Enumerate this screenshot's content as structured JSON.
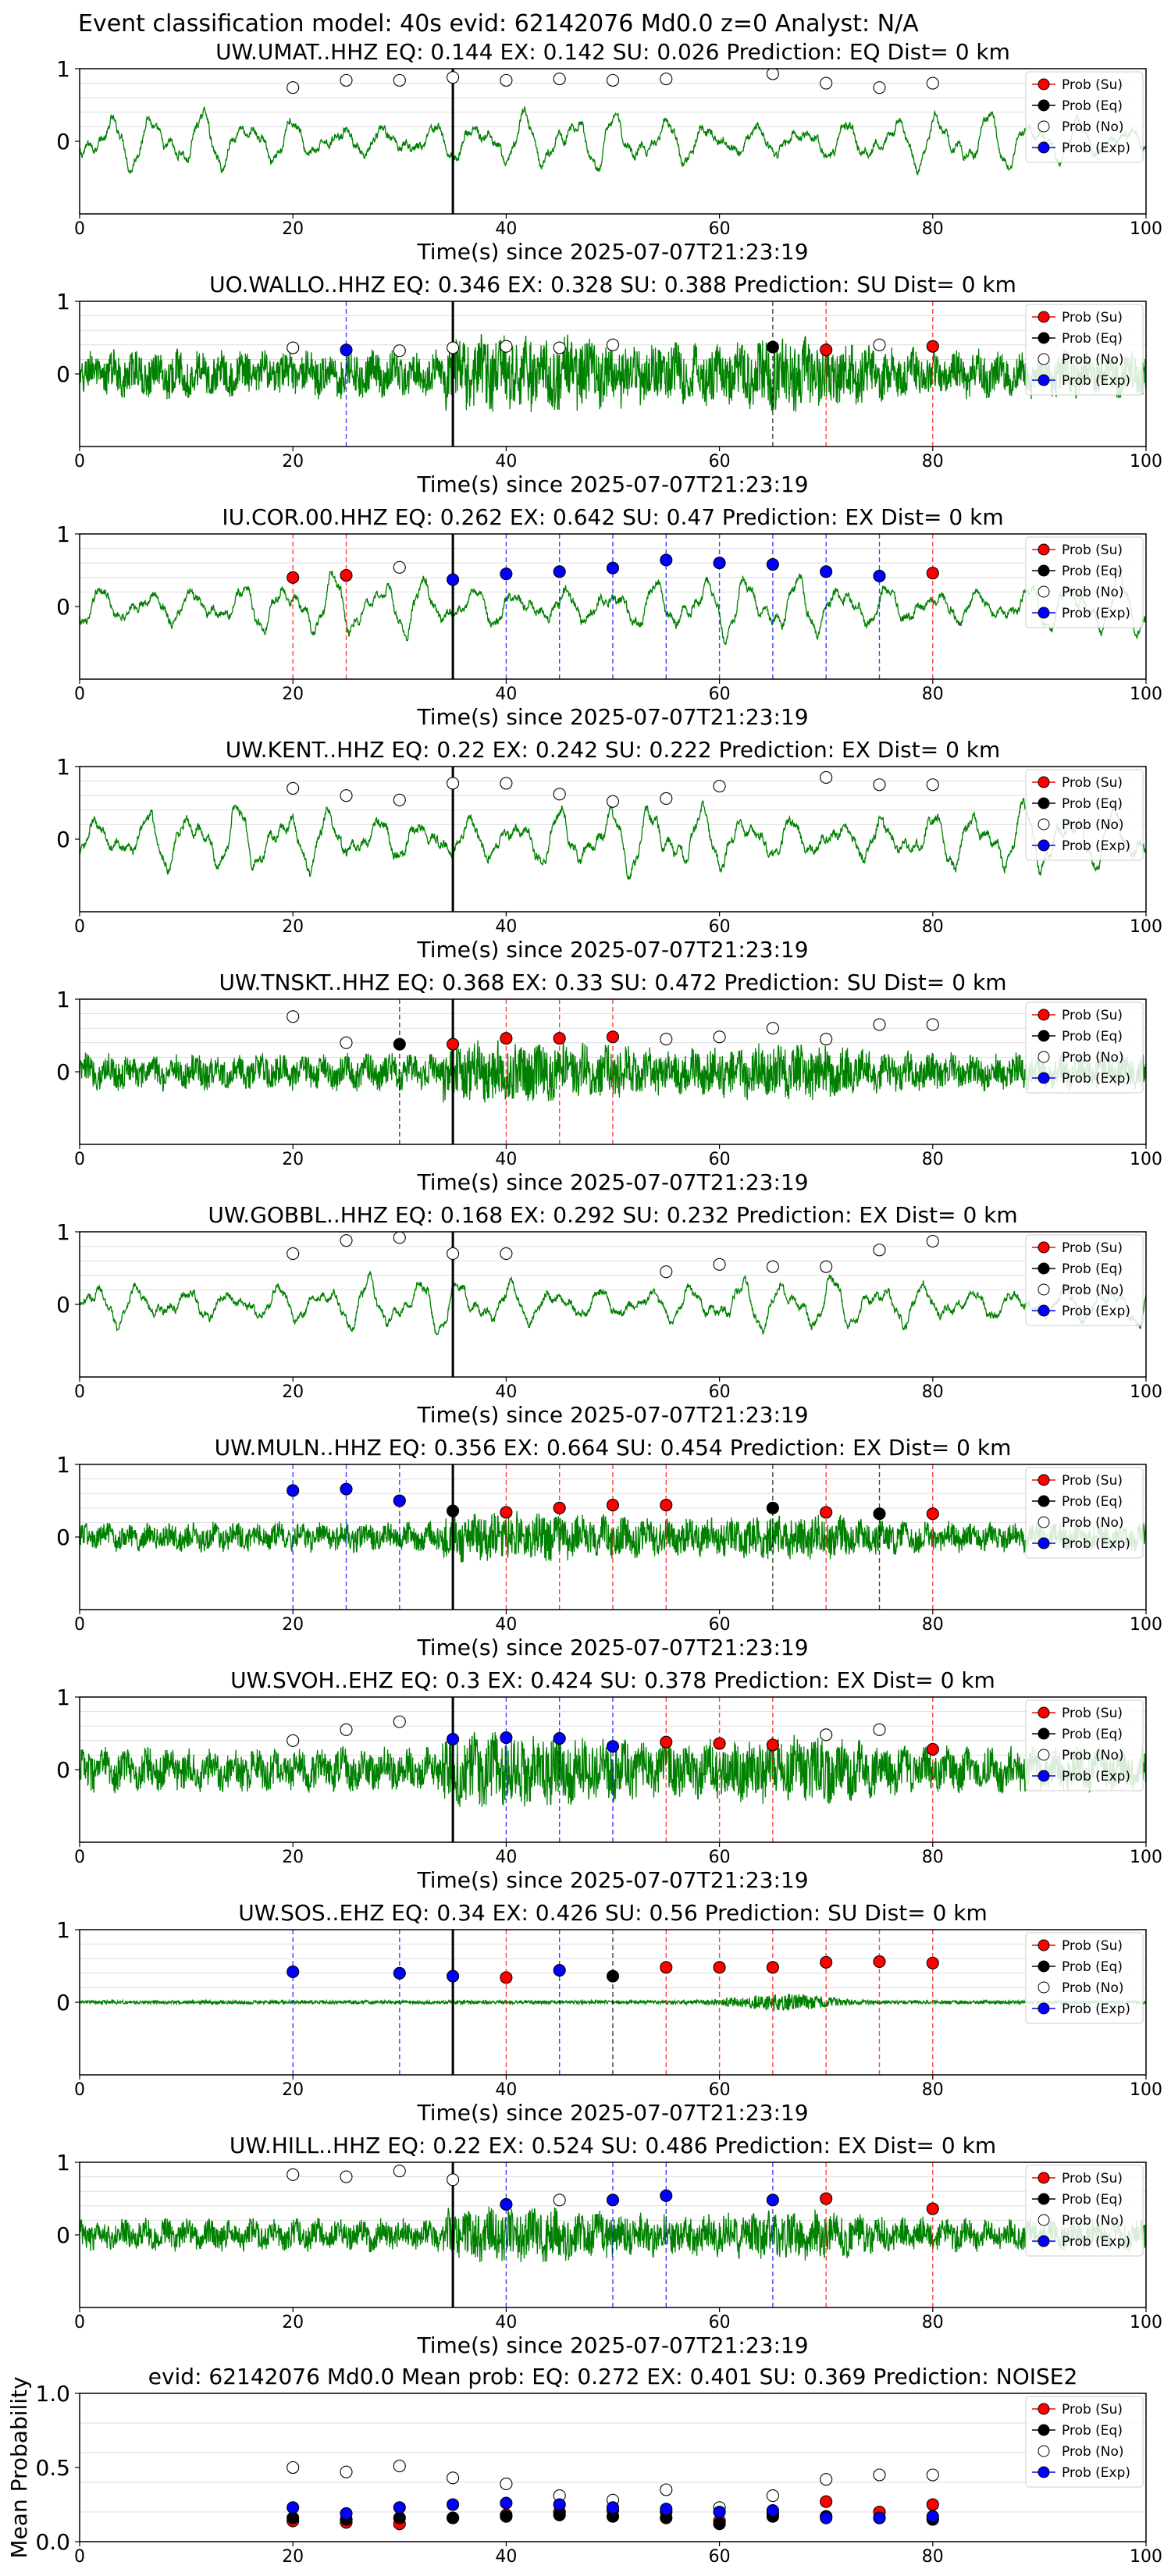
{
  "figure_title": "Event classification model: 40s evid: 62142076 Md0.0 z=0 Analyst: N/A",
  "legend": [
    {
      "label": "Prob (Su)",
      "color": "#ff0000"
    },
    {
      "label": "Prob (Eq)",
      "color": "#000000"
    },
    {
      "label": "Prob (No)",
      "color": "#ffffff"
    },
    {
      "label": "Prob (Exp)",
      "color": "#0000ff"
    }
  ],
  "colors": {
    "trace": "#008000",
    "su": "#ff0000",
    "eq": "#000000",
    "no": "#ffffff",
    "exp": "#0000ff",
    "grid": "#dddddd"
  },
  "chart_data": [
    {
      "type": "line",
      "station": "UW.UMAT..HHZ",
      "title": "UW.UMAT..HHZ   EQ: 0.144  EX: 0.142  SU: 0.026   Prediction: EQ    Dist= 0 km",
      "xlabel": "Time(s) since 2025-07-07T21:23:19",
      "xlim": [
        0,
        100
      ],
      "ylim": [
        -1,
        1
      ],
      "xticks": [
        "0",
        "20",
        "40",
        "60",
        "80",
        "100"
      ],
      "yticks": [
        "1",
        "0"
      ],
      "pick_time": 35,
      "trace_style": "smooth",
      "trace_amp": 0.42,
      "points": [
        {
          "x": 20,
          "y": 0.74,
          "class": "no"
        },
        {
          "x": 25,
          "y": 0.84,
          "class": "no"
        },
        {
          "x": 30,
          "y": 0.84,
          "class": "no"
        },
        {
          "x": 35,
          "y": 0.88,
          "class": "no"
        },
        {
          "x": 40,
          "y": 0.84,
          "class": "no"
        },
        {
          "x": 45,
          "y": 0.86,
          "class": "no"
        },
        {
          "x": 50,
          "y": 0.84,
          "class": "no"
        },
        {
          "x": 55,
          "y": 0.86,
          "class": "no"
        },
        {
          "x": 65,
          "y": 0.93,
          "class": "no"
        },
        {
          "x": 70,
          "y": 0.8,
          "class": "no"
        },
        {
          "x": 75,
          "y": 0.74,
          "class": "no"
        },
        {
          "x": 80,
          "y": 0.8,
          "class": "no"
        }
      ]
    },
    {
      "type": "line",
      "station": "UO.WALLO..HHZ",
      "title": "UO.WALLO..HHZ   EQ: 0.346  EX: 0.328  SU: 0.388   Prediction: SU    Dist= 0 km",
      "xlabel": "Time(s) since 2025-07-07T21:23:19",
      "xlim": [
        0,
        100
      ],
      "ylim": [
        -1,
        1
      ],
      "xticks": [
        "0",
        "20",
        "40",
        "60",
        "80",
        "100"
      ],
      "yticks": [
        "1",
        "0"
      ],
      "pick_time": 35,
      "trace_style": "noisy",
      "trace_amp": 0.32,
      "points": [
        {
          "x": 20,
          "y": 0.36,
          "class": "no"
        },
        {
          "x": 25,
          "y": 0.33,
          "class": "exp"
        },
        {
          "x": 30,
          "y": 0.32,
          "class": "no"
        },
        {
          "x": 35,
          "y": 0.36,
          "class": "no"
        },
        {
          "x": 40,
          "y": 0.38,
          "class": "no"
        },
        {
          "x": 45,
          "y": 0.36,
          "class": "no"
        },
        {
          "x": 50,
          "y": 0.4,
          "class": "no"
        },
        {
          "x": 65,
          "y": 0.37,
          "class": "eq"
        },
        {
          "x": 70,
          "y": 0.33,
          "class": "su"
        },
        {
          "x": 75,
          "y": 0.4,
          "class": "no"
        },
        {
          "x": 80,
          "y": 0.38,
          "class": "su"
        }
      ]
    },
    {
      "type": "line",
      "station": "IU.COR.00.HHZ",
      "title": "IU.COR.00.HHZ   EQ: 0.262  EX: 0.642  SU: 0.47   Prediction: EX    Dist= 0 km",
      "xlabel": "Time(s) since 2025-07-07T21:23:19",
      "xlim": [
        0,
        100
      ],
      "ylim": [
        -1,
        1
      ],
      "xticks": [
        "0",
        "20",
        "40",
        "60",
        "80",
        "100"
      ],
      "yticks": [
        "1",
        "0"
      ],
      "pick_time": 35,
      "trace_style": "smooth",
      "trace_amp": 0.45,
      "points": [
        {
          "x": 20,
          "y": 0.4,
          "class": "su"
        },
        {
          "x": 25,
          "y": 0.43,
          "class": "su"
        },
        {
          "x": 30,
          "y": 0.54,
          "class": "no"
        },
        {
          "x": 35,
          "y": 0.37,
          "class": "exp"
        },
        {
          "x": 40,
          "y": 0.45,
          "class": "exp"
        },
        {
          "x": 45,
          "y": 0.48,
          "class": "exp"
        },
        {
          "x": 50,
          "y": 0.53,
          "class": "exp"
        },
        {
          "x": 55,
          "y": 0.64,
          "class": "exp"
        },
        {
          "x": 60,
          "y": 0.6,
          "class": "exp"
        },
        {
          "x": 65,
          "y": 0.58,
          "class": "exp"
        },
        {
          "x": 70,
          "y": 0.48,
          "class": "exp"
        },
        {
          "x": 75,
          "y": 0.42,
          "class": "exp"
        },
        {
          "x": 80,
          "y": 0.46,
          "class": "su"
        }
      ]
    },
    {
      "type": "line",
      "station": "UW.KENT..HHZ",
      "title": "UW.KENT..HHZ   EQ: 0.22  EX: 0.242  SU: 0.222   Prediction: EX    Dist= 0 km",
      "xlabel": "Time(s) since 2025-07-07T21:23:19",
      "xlim": [
        0,
        100
      ],
      "ylim": [
        -1,
        1
      ],
      "xticks": [
        "0",
        "20",
        "40",
        "60",
        "80",
        "100"
      ],
      "yticks": [
        "1",
        "0"
      ],
      "pick_time": 35,
      "trace_style": "smooth",
      "trace_amp": 0.5,
      "points": [
        {
          "x": 20,
          "y": 0.7,
          "class": "no"
        },
        {
          "x": 25,
          "y": 0.6,
          "class": "no"
        },
        {
          "x": 30,
          "y": 0.54,
          "class": "no"
        },
        {
          "x": 35,
          "y": 0.77,
          "class": "no"
        },
        {
          "x": 40,
          "y": 0.77,
          "class": "no"
        },
        {
          "x": 45,
          "y": 0.62,
          "class": "no"
        },
        {
          "x": 50,
          "y": 0.52,
          "class": "no"
        },
        {
          "x": 55,
          "y": 0.56,
          "class": "no"
        },
        {
          "x": 60,
          "y": 0.73,
          "class": "no"
        },
        {
          "x": 70,
          "y": 0.85,
          "class": "no"
        },
        {
          "x": 75,
          "y": 0.75,
          "class": "no"
        },
        {
          "x": 80,
          "y": 0.75,
          "class": "no"
        }
      ]
    },
    {
      "type": "line",
      "station": "UW.TNSKT..HHZ",
      "title": "UW.TNSKT..HHZ   EQ: 0.368  EX: 0.33  SU: 0.472   Prediction: SU    Dist= 0 km",
      "xlabel": "Time(s) since 2025-07-07T21:23:19",
      "xlim": [
        0,
        100
      ],
      "ylim": [
        -1,
        1
      ],
      "xticks": [
        "0",
        "20",
        "40",
        "60",
        "80",
        "100"
      ],
      "yticks": [
        "1",
        "0"
      ],
      "pick_time": 35,
      "trace_style": "noisy",
      "trace_amp": 0.25,
      "points": [
        {
          "x": 20,
          "y": 0.76,
          "class": "no"
        },
        {
          "x": 25,
          "y": 0.4,
          "class": "no"
        },
        {
          "x": 30,
          "y": 0.38,
          "class": "eq"
        },
        {
          "x": 35,
          "y": 0.38,
          "class": "su"
        },
        {
          "x": 40,
          "y": 0.46,
          "class": "su"
        },
        {
          "x": 45,
          "y": 0.46,
          "class": "su"
        },
        {
          "x": 50,
          "y": 0.48,
          "class": "su"
        },
        {
          "x": 55,
          "y": 0.45,
          "class": "no"
        },
        {
          "x": 60,
          "y": 0.48,
          "class": "no"
        },
        {
          "x": 65,
          "y": 0.6,
          "class": "no"
        },
        {
          "x": 70,
          "y": 0.45,
          "class": "no"
        },
        {
          "x": 75,
          "y": 0.65,
          "class": "no"
        },
        {
          "x": 80,
          "y": 0.65,
          "class": "no"
        }
      ]
    },
    {
      "type": "line",
      "station": "UW.GOBBL..HHZ",
      "title": "UW.GOBBL..HHZ   EQ: 0.168  EX: 0.292  SU: 0.232   Prediction: EX    Dist= 0 km",
      "xlabel": "Time(s) since 2025-07-07T21:23:19",
      "xlim": [
        0,
        100
      ],
      "ylim": [
        -1,
        1
      ],
      "xticks": [
        "0",
        "20",
        "40",
        "60",
        "80",
        "100"
      ],
      "yticks": [
        "1",
        "0"
      ],
      "pick_time": 35,
      "trace_style": "smooth",
      "trace_amp": 0.4,
      "points": [
        {
          "x": 20,
          "y": 0.7,
          "class": "no"
        },
        {
          "x": 25,
          "y": 0.88,
          "class": "no"
        },
        {
          "x": 30,
          "y": 0.92,
          "class": "no"
        },
        {
          "x": 35,
          "y": 0.7,
          "class": "no"
        },
        {
          "x": 40,
          "y": 0.7,
          "class": "no"
        },
        {
          "x": 55,
          "y": 0.45,
          "class": "no"
        },
        {
          "x": 60,
          "y": 0.55,
          "class": "no"
        },
        {
          "x": 65,
          "y": 0.52,
          "class": "no"
        },
        {
          "x": 70,
          "y": 0.52,
          "class": "no"
        },
        {
          "x": 75,
          "y": 0.75,
          "class": "no"
        },
        {
          "x": 80,
          "y": 0.87,
          "class": "no"
        }
      ]
    },
    {
      "type": "line",
      "station": "UW.MULN..HHZ",
      "title": "UW.MULN..HHZ   EQ: 0.356  EX: 0.664  SU: 0.454   Prediction: EX    Dist= 0 km",
      "xlabel": "Time(s) since 2025-07-07T21:23:19",
      "xlim": [
        0,
        100
      ],
      "ylim": [
        -1,
        1
      ],
      "xticks": [
        "0",
        "20",
        "40",
        "60",
        "80",
        "100"
      ],
      "yticks": [
        "1",
        "0"
      ],
      "pick_time": 35,
      "trace_style": "noisy",
      "trace_amp": 0.2,
      "points": [
        {
          "x": 20,
          "y": 0.64,
          "class": "exp"
        },
        {
          "x": 25,
          "y": 0.66,
          "class": "exp"
        },
        {
          "x": 30,
          "y": 0.5,
          "class": "exp"
        },
        {
          "x": 35,
          "y": 0.36,
          "class": "eq"
        },
        {
          "x": 40,
          "y": 0.34,
          "class": "su"
        },
        {
          "x": 45,
          "y": 0.4,
          "class": "su"
        },
        {
          "x": 50,
          "y": 0.44,
          "class": "su"
        },
        {
          "x": 55,
          "y": 0.44,
          "class": "su"
        },
        {
          "x": 65,
          "y": 0.4,
          "class": "eq"
        },
        {
          "x": 70,
          "y": 0.34,
          "class": "su"
        },
        {
          "x": 75,
          "y": 0.32,
          "class": "eq"
        },
        {
          "x": 80,
          "y": 0.32,
          "class": "su"
        }
      ]
    },
    {
      "type": "line",
      "station": "UW.SVOH..EHZ",
      "title": "UW.SVOH..EHZ   EQ: 0.3  EX: 0.424  SU: 0.378   Prediction: EX    Dist= 0 km",
      "xlabel": "Time(s) since 2025-07-07T21:23:19",
      "xlim": [
        0,
        100
      ],
      "ylim": [
        -1,
        1
      ],
      "xticks": [
        "0",
        "20",
        "40",
        "60",
        "80",
        "100"
      ],
      "yticks": [
        "1",
        "0"
      ],
      "pick_time": 35,
      "trace_style": "noisy",
      "trace_amp": 0.3,
      "points": [
        {
          "x": 20,
          "y": 0.4,
          "class": "no"
        },
        {
          "x": 25,
          "y": 0.55,
          "class": "no"
        },
        {
          "x": 30,
          "y": 0.66,
          "class": "no"
        },
        {
          "x": 35,
          "y": 0.42,
          "class": "exp"
        },
        {
          "x": 40,
          "y": 0.44,
          "class": "exp"
        },
        {
          "x": 45,
          "y": 0.43,
          "class": "exp"
        },
        {
          "x": 50,
          "y": 0.32,
          "class": "exp"
        },
        {
          "x": 55,
          "y": 0.38,
          "class": "su"
        },
        {
          "x": 60,
          "y": 0.36,
          "class": "su"
        },
        {
          "x": 65,
          "y": 0.34,
          "class": "su"
        },
        {
          "x": 70,
          "y": 0.48,
          "class": "no"
        },
        {
          "x": 75,
          "y": 0.55,
          "class": "no"
        },
        {
          "x": 80,
          "y": 0.28,
          "class": "su"
        }
      ]
    },
    {
      "type": "line",
      "station": "UW.SOS..EHZ",
      "title": "UW.SOS..EHZ   EQ: 0.34  EX: 0.426  SU: 0.56   Prediction: SU    Dist= 0 km",
      "xlabel": "Time(s) since 2025-07-07T21:23:19",
      "xlim": [
        0,
        100
      ],
      "ylim": [
        -1,
        1
      ],
      "xticks": [
        "0",
        "20",
        "40",
        "60",
        "80",
        "100"
      ],
      "yticks": [
        "1",
        "0"
      ],
      "pick_time": 35,
      "trace_style": "quiet",
      "trace_amp": 0.08,
      "points": [
        {
          "x": 20,
          "y": 0.42,
          "class": "exp"
        },
        {
          "x": 30,
          "y": 0.4,
          "class": "exp"
        },
        {
          "x": 35,
          "y": 0.36,
          "class": "exp"
        },
        {
          "x": 40,
          "y": 0.34,
          "class": "su"
        },
        {
          "x": 45,
          "y": 0.44,
          "class": "exp"
        },
        {
          "x": 50,
          "y": 0.36,
          "class": "eq"
        },
        {
          "x": 55,
          "y": 0.48,
          "class": "su"
        },
        {
          "x": 60,
          "y": 0.48,
          "class": "su"
        },
        {
          "x": 65,
          "y": 0.48,
          "class": "su"
        },
        {
          "x": 70,
          "y": 0.55,
          "class": "su"
        },
        {
          "x": 75,
          "y": 0.56,
          "class": "su"
        },
        {
          "x": 80,
          "y": 0.54,
          "class": "su"
        }
      ]
    },
    {
      "type": "line",
      "station": "UW.HILL..HHZ",
      "title": "UW.HILL..HHZ   EQ: 0.22  EX: 0.524  SU: 0.486   Prediction: EX    Dist= 0 km",
      "xlabel": "Time(s) since 2025-07-07T21:23:19",
      "xlim": [
        0,
        100
      ],
      "ylim": [
        -1,
        1
      ],
      "xticks": [
        "0",
        "20",
        "40",
        "60",
        "80",
        "100"
      ],
      "yticks": [
        "1",
        "0"
      ],
      "pick_time": 35,
      "trace_style": "noisy",
      "trace_amp": 0.22,
      "points": [
        {
          "x": 20,
          "y": 0.83,
          "class": "no"
        },
        {
          "x": 25,
          "y": 0.8,
          "class": "no"
        },
        {
          "x": 30,
          "y": 0.88,
          "class": "no"
        },
        {
          "x": 35,
          "y": 0.76,
          "class": "no"
        },
        {
          "x": 40,
          "y": 0.42,
          "class": "exp"
        },
        {
          "x": 45,
          "y": 0.48,
          "class": "no"
        },
        {
          "x": 50,
          "y": 0.48,
          "class": "exp"
        },
        {
          "x": 55,
          "y": 0.54,
          "class": "exp"
        },
        {
          "x": 65,
          "y": 0.48,
          "class": "exp"
        },
        {
          "x": 70,
          "y": 0.5,
          "class": "su"
        },
        {
          "x": 80,
          "y": 0.36,
          "class": "su"
        }
      ]
    },
    {
      "type": "scatter",
      "title": "evid: 62142076  Md0.0   Mean prob:   EQ: 0.272  EX: 0.401  SU: 0.369   Prediction: NOISE2",
      "xlabel": "",
      "ylabel": "Mean Probability",
      "xlim": [
        0,
        100
      ],
      "ylim": [
        0,
        1
      ],
      "xticks": [
        "0",
        "20",
        "40",
        "60",
        "80",
        "100"
      ],
      "yticks": [
        "0.0",
        "0.5",
        "1.0"
      ],
      "x": [
        20,
        25,
        30,
        35,
        40,
        45,
        50,
        55,
        60,
        65,
        70,
        75,
        80
      ],
      "series": [
        {
          "name": "Prob (Su)",
          "class": "su",
          "values": [
            0.14,
            0.13,
            0.12,
            0.16,
            0.18,
            0.2,
            0.21,
            0.2,
            0.14,
            0.19,
            0.27,
            0.2,
            0.25
          ]
        },
        {
          "name": "Prob (Eq)",
          "class": "eq",
          "values": [
            0.16,
            0.15,
            0.16,
            0.16,
            0.17,
            0.18,
            0.17,
            0.16,
            0.12,
            0.17,
            0.17,
            0.16,
            0.15
          ]
        },
        {
          "name": "Prob (No)",
          "class": "no",
          "values": [
            0.5,
            0.47,
            0.51,
            0.43,
            0.39,
            0.31,
            0.28,
            0.35,
            0.23,
            0.31,
            0.42,
            0.45,
            0.45
          ]
        },
        {
          "name": "Prob (Exp)",
          "class": "exp",
          "values": [
            0.23,
            0.19,
            0.23,
            0.25,
            0.26,
            0.25,
            0.23,
            0.22,
            0.2,
            0.21,
            0.16,
            0.16,
            0.17
          ]
        }
      ]
    }
  ]
}
